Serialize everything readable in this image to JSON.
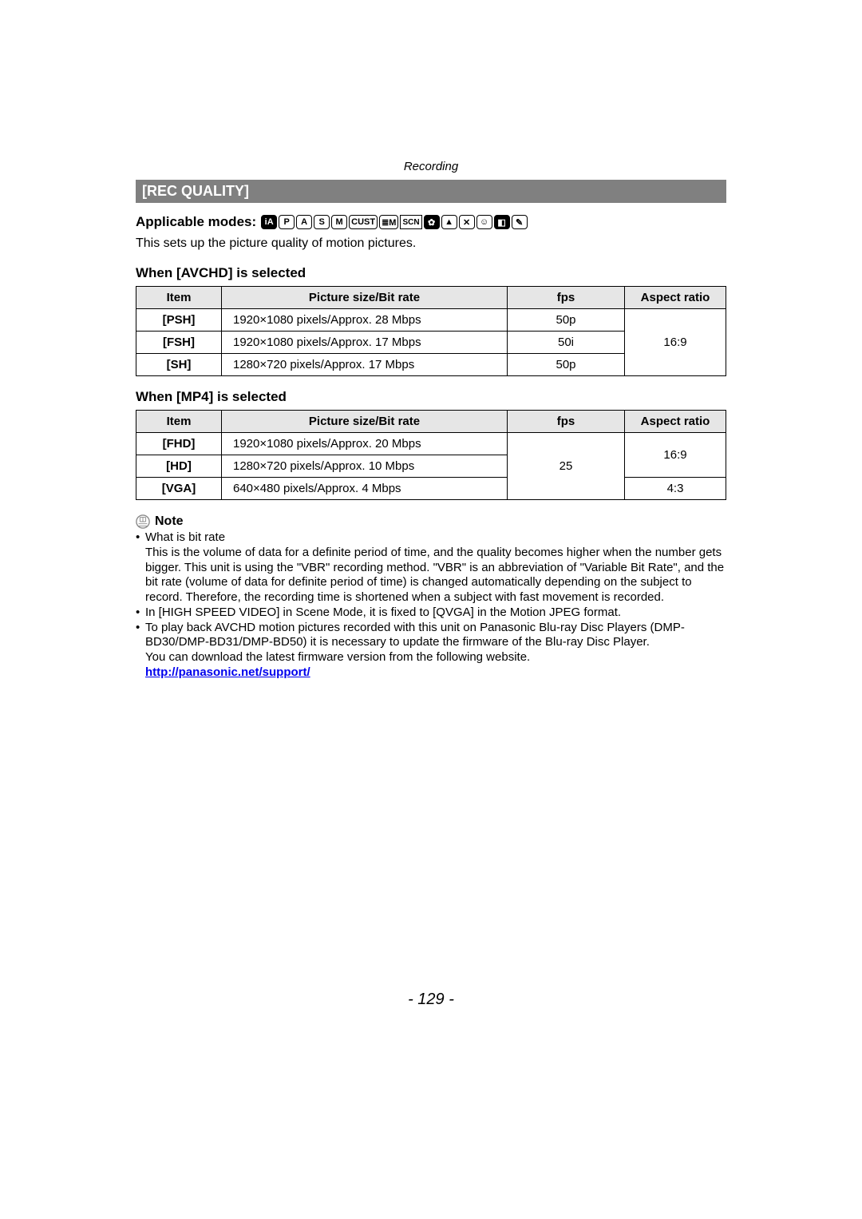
{
  "header": {
    "section": "Recording"
  },
  "title_bar": "[REC QUALITY]",
  "modes": {
    "label": "Applicable modes:",
    "icons": [
      {
        "text": "iA",
        "filled": true
      },
      {
        "text": "P",
        "filled": false
      },
      {
        "text": "A",
        "filled": false
      },
      {
        "text": "S",
        "filled": false
      },
      {
        "text": "M",
        "filled": false
      },
      {
        "text": "CUST",
        "filled": false
      },
      {
        "text": "≣M",
        "filled": false
      },
      {
        "text": "SCN",
        "filled": false,
        "scn": true
      },
      {
        "text": "✿",
        "filled": true
      },
      {
        "text": "▲",
        "filled": false
      },
      {
        "text": "✕",
        "filled": false
      },
      {
        "text": "☺",
        "filled": false
      },
      {
        "text": "◧",
        "filled": true
      },
      {
        "text": "✎",
        "filled": false
      }
    ]
  },
  "intro": "This sets up the picture quality of motion pictures.",
  "table1": {
    "heading": "When [AVCHD] is selected",
    "cols": [
      "Item",
      "Picture size/Bit rate",
      "fps",
      "Aspect ratio"
    ],
    "rows": [
      {
        "item": "[PSH]",
        "pic": "1920×1080 pixels/Approx. 28 Mbps",
        "fps": "50p"
      },
      {
        "item": "[FSH]",
        "pic": "1920×1080 pixels/Approx. 17 Mbps",
        "fps": "50i"
      },
      {
        "item": "[SH]",
        "pic": "1280×720 pixels/Approx. 17 Mbps",
        "fps": "50p"
      }
    ],
    "aspect": "16:9"
  },
  "table2": {
    "heading": "When [MP4] is selected",
    "cols": [
      "Item",
      "Picture size/Bit rate",
      "fps",
      "Aspect ratio"
    ],
    "rows": [
      {
        "item": "[FHD]",
        "pic": "1920×1080 pixels/Approx. 20 Mbps"
      },
      {
        "item": "[HD]",
        "pic": "1280×720 pixels/Approx. 10 Mbps"
      },
      {
        "item": "[VGA]",
        "pic": "640×480 pixels/Approx. 4 Mbps"
      }
    ],
    "fps": "25",
    "aspect1": "16:9",
    "aspect2": "4:3"
  },
  "note": {
    "label": "Note",
    "bullets": [
      "What is bit rate",
      "In [HIGH SPEED VIDEO] in Scene Mode, it is fixed to [QVGA] in the Motion JPEG format.",
      "To play back AVCHD motion pictures recorded with this unit on Panasonic Blu-ray Disc Players (DMP-BD30/DMP-BD31/DMP-BD50) it is necessary to update the firmware of the Blu-ray Disc Player."
    ],
    "bitrate_body": "This is the volume of data for a definite period of time, and the quality becomes higher when the number gets bigger. This unit is using the \"VBR\" recording method. \"VBR\" is an abbreviation of \"Variable Bit Rate\", and the bit rate (volume of data for definite period of time) is changed automatically depending on the subject to record. Therefore, the recording time is shortened when a subject with fast movement is recorded.",
    "firmware_line": "You can download the latest firmware version from the following website.",
    "link": "http://panasonic.net/support/"
  },
  "page_number": "- 129 -",
  "colors": {
    "bar_bg": "#808080",
    "bar_fg": "#ffffff",
    "th_bg": "#e6e6e6"
  }
}
